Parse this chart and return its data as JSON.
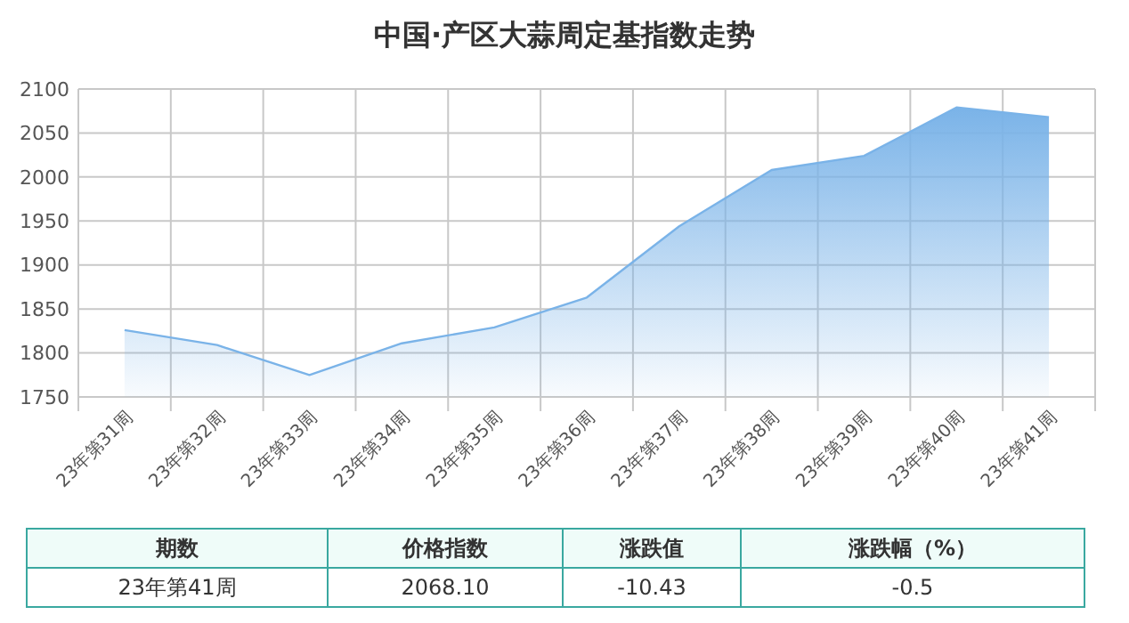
{
  "chart_data": {
    "type": "area",
    "title": "中国·产区大蒜周定基指数走势",
    "categories": [
      "23年第31周",
      "23年第32周",
      "23年第33周",
      "23年第34周",
      "23年第35周",
      "23年第36周",
      "23年第37周",
      "23年第38周",
      "23年第39周",
      "23年第40周",
      "23年第41周"
    ],
    "series": [
      {
        "color": "#7ab3e8",
        "values": [
          1826,
          1809,
          1775,
          1811,
          1829,
          1863,
          1944,
          2008,
          2024,
          2079,
          2068
        ]
      }
    ],
    "ylim": [
      1750,
      2100
    ],
    "yticks": [
      1750,
      1800,
      1850,
      1900,
      1950,
      2000,
      2050,
      2100
    ],
    "grid": true,
    "annotations": [
      "期数",
      "价格指数",
      "涨跌值",
      "涨跌幅（%）",
      "23年第41周",
      "2068.10",
      "-10.43",
      "-0.5"
    ]
  }
}
